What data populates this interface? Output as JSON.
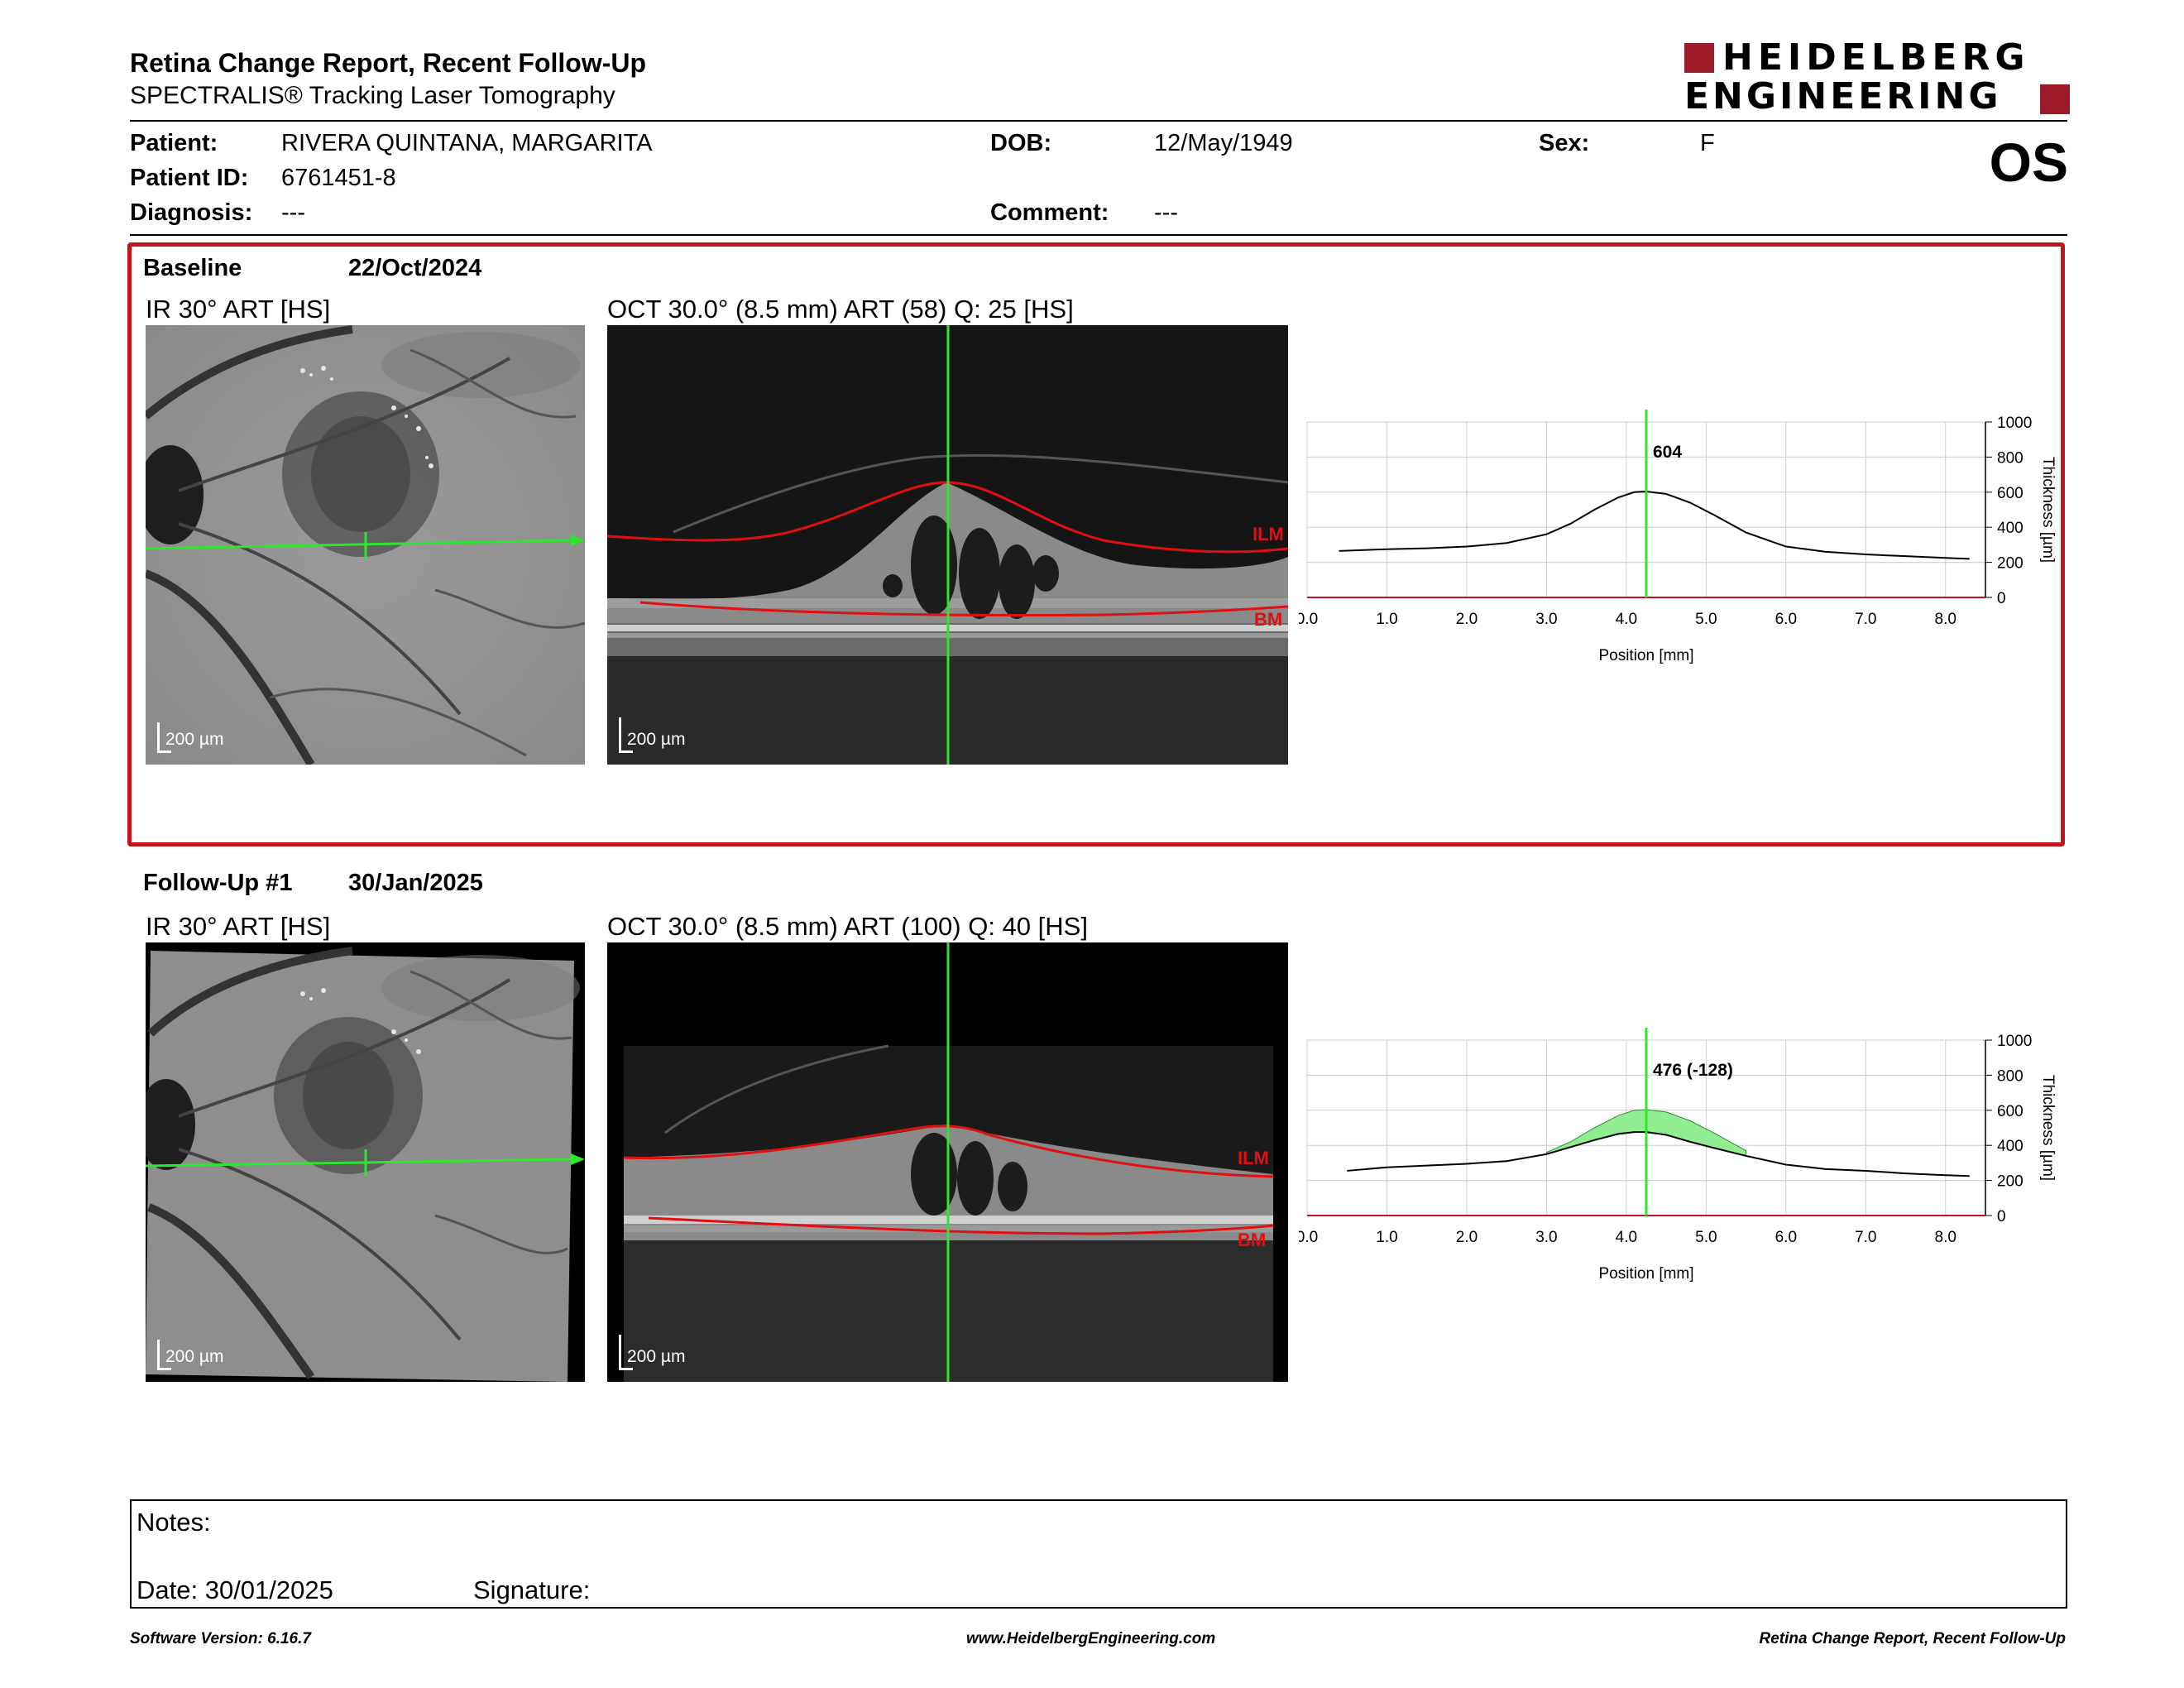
{
  "header": {
    "title": "Retina Change Report, Recent Follow-Up",
    "subtitle": "SPECTRALIS® Tracking Laser Tomography",
    "logo_line1": "HEIDELBERG",
    "logo_line2": "ENGINEERING",
    "brand_color": "#9e1c2a"
  },
  "patient": {
    "patient_label": "Patient:",
    "patient_value": "RIVERA QUINTANA, MARGARITA",
    "id_label": "Patient ID:",
    "id_value": "6761451-8",
    "diagnosis_label": "Diagnosis:",
    "diagnosis_value": "---",
    "dob_label": "DOB:",
    "dob_value": "12/May/1949",
    "comment_label": "Comment:",
    "comment_value": "---",
    "sex_label": "Sex:",
    "sex_value": "F",
    "eye": "OS"
  },
  "baseline": {
    "label": "Baseline",
    "date": "22/Oct/2024",
    "ir_title": "IR 30° ART [HS]",
    "oct_title": "OCT 30.0° (8.5 mm) ART (58) Q: 25 [HS]",
    "scale_ir": "200 µm",
    "scale_oct": "200 µm",
    "ilm_label": "ILM",
    "bm_label": "BM"
  },
  "followup": {
    "label": "Follow-Up #1",
    "date": "30/Jan/2025",
    "ir_title": "IR 30° ART [HS]",
    "oct_title": "OCT 30.0° (8.5 mm) ART (100) Q: 40 [HS]",
    "scale_ir": "200 µm",
    "scale_oct": "200 µm",
    "ilm_label": "ILM",
    "bm_label": "BM"
  },
  "chart_data": [
    {
      "type": "line",
      "xlabel": "Position [mm]",
      "ylabel": "Thickness [µm]",
      "xlim": [
        0.0,
        8.5
      ],
      "ylim": [
        0,
        1000
      ],
      "x_ticks": [
        "0.0",
        "1.0",
        "2.0",
        "3.0",
        "4.0",
        "5.0",
        "6.0",
        "7.0",
        "8.0"
      ],
      "y_ticks": [
        "0",
        "200",
        "400",
        "600",
        "800",
        "1000"
      ],
      "grid": true,
      "cursor_x": 4.25,
      "annotation": "604",
      "series": [
        {
          "x": [
            0.4,
            1.0,
            1.5,
            2.0,
            2.5,
            3.0,
            3.3,
            3.6,
            3.9,
            4.1,
            4.25,
            4.5,
            4.8,
            5.1,
            5.5,
            6.0,
            6.5,
            7.0,
            7.5,
            8.0,
            8.3
          ],
          "y": [
            265,
            275,
            280,
            290,
            310,
            360,
            420,
            500,
            570,
            600,
            604,
            590,
            540,
            470,
            370,
            290,
            260,
            245,
            235,
            225,
            220
          ]
        }
      ]
    },
    {
      "type": "line",
      "xlabel": "Position [mm]",
      "ylabel": "Thickness [µm]",
      "xlim": [
        0.0,
        8.5
      ],
      "ylim": [
        0,
        1000
      ],
      "x_ticks": [
        "0.0",
        "1.0",
        "2.0",
        "3.0",
        "4.0",
        "5.0",
        "6.0",
        "7.0",
        "8.0"
      ],
      "y_ticks": [
        "0",
        "200",
        "400",
        "600",
        "800",
        "1000"
      ],
      "grid": true,
      "cursor_x": 4.25,
      "annotation": "476 (-128)",
      "fill_color": "#90ee90",
      "series": [
        {
          "x": [
            0.5,
            1.0,
            1.5,
            2.0,
            2.5,
            3.0,
            3.3,
            3.6,
            3.9,
            4.1,
            4.25,
            4.5,
            4.8,
            5.1,
            5.5,
            6.0,
            6.5,
            7.0,
            7.5,
            8.0,
            8.3
          ],
          "y": [
            255,
            275,
            285,
            295,
            310,
            350,
            390,
            430,
            465,
            476,
            476,
            460,
            420,
            385,
            340,
            290,
            265,
            255,
            240,
            230,
            225
          ]
        },
        {
          "x": [
            3.0,
            3.3,
            3.6,
            3.9,
            4.1,
            4.25,
            4.5,
            4.8,
            5.1,
            5.5
          ],
          "y": [
            360,
            420,
            500,
            570,
            600,
            604,
            590,
            540,
            470,
            370
          ]
        }
      ]
    }
  ],
  "notes": {
    "notes_label": "Notes:",
    "date_label": "Date: 30/01/2025",
    "signature_label": "Signature:"
  },
  "footer": {
    "left": "Software Version: 6.16.7",
    "center": "www.HeidelbergEngineering.com",
    "right": "Retina Change Report, Recent Follow-Up"
  }
}
